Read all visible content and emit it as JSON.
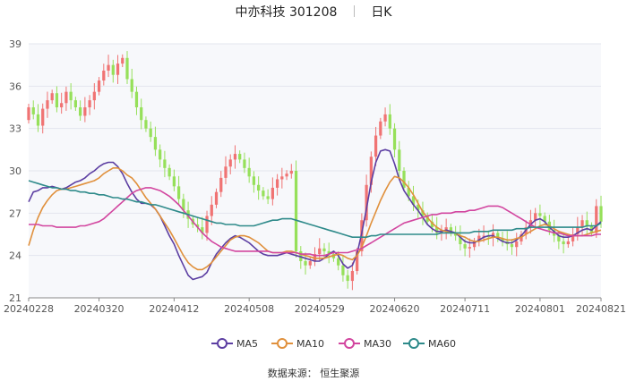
{
  "header": {
    "stock_name": "中亦科技",
    "stock_code": "301208",
    "period": "日K"
  },
  "source": {
    "label": "数据来源：",
    "provider": "恒生聚源"
  },
  "colors": {
    "up": "#f07373",
    "down": "#96e05a",
    "grid": "#e3e6ee",
    "plot_bg": "#f7f8fb",
    "ma5": "#5c3ea2",
    "ma10": "#e0903c",
    "ma30": "#d2459f",
    "ma60": "#2e8a8a"
  },
  "chart_data": {
    "type": "candlestick",
    "title": "中亦科技 301208  日K",
    "ylim": [
      21,
      39
    ],
    "yticks": [
      21,
      24,
      27,
      30,
      33,
      36,
      39
    ],
    "xticks": [
      "20240228",
      "20240320",
      "20240412",
      "20240508",
      "20240529",
      "20240620",
      "20240711",
      "20240801",
      "20240821"
    ],
    "xtick_index": [
      0,
      15,
      31,
      47,
      62,
      78,
      93,
      109,
      122
    ],
    "grid": true,
    "legend": "bottom-center",
    "series_names": [
      "MA5",
      "MA10",
      "MA30",
      "MA60"
    ],
    "closes": [
      34.5,
      34.0,
      33.2,
      34.4,
      35.0,
      35.5,
      34.5,
      34.8,
      35.6,
      35.0,
      34.5,
      33.9,
      34.5,
      35.0,
      35.6,
      36.4,
      37.1,
      37.5,
      36.8,
      37.6,
      38.0,
      36.5,
      35.6,
      34.5,
      33.6,
      33.0,
      32.4,
      31.5,
      30.8,
      30.2,
      29.6,
      28.9,
      28.0,
      27.2,
      26.6,
      26.2,
      26.0,
      25.6,
      26.8,
      27.6,
      28.5,
      29.5,
      30.3,
      30.8,
      31.2,
      30.8,
      30.2,
      29.6,
      29.0,
      28.6,
      28.2,
      28.0,
      28.8,
      29.4,
      29.6,
      29.8,
      30.0,
      24.3,
      23.6,
      23.3,
      23.6,
      24.1,
      24.5,
      24.3,
      24.1,
      23.8,
      23.3,
      22.6,
      22.2,
      22.9,
      24.3,
      26.5,
      29.0,
      31.0,
      32.5,
      33.5,
      34.0,
      33.0,
      31.5,
      30.0,
      28.8,
      28.2,
      27.6,
      27.2,
      26.8,
      26.4,
      26.0,
      25.6,
      25.8,
      26.0,
      25.6,
      25.4,
      24.8,
      24.5,
      24.6,
      25.0,
      25.4,
      25.4,
      25.3,
      25.6,
      25.2,
      25.0,
      24.8,
      24.6,
      25.0,
      25.5,
      26.0,
      26.5,
      27.0,
      26.8,
      26.4,
      25.8,
      25.4,
      25.0,
      24.8,
      25.0,
      25.5,
      26.0,
      26.5,
      26.1,
      25.6,
      27.5,
      26.4
    ],
    "ma5": [
      27.8,
      28.5,
      28.6,
      28.8,
      28.8,
      28.9,
      28.8,
      28.7,
      28.8,
      29.0,
      29.2,
      29.3,
      29.5,
      29.8,
      30.0,
      30.3,
      30.5,
      30.6,
      30.6,
      30.3,
      29.8,
      29.1,
      28.5,
      28.0,
      27.7,
      27.7,
      27.6,
      27.3,
      26.8,
      26.1,
      25.4,
      24.8,
      24.0,
      23.3,
      22.6,
      22.3,
      22.4,
      22.5,
      22.8,
      23.5,
      24.1,
      24.5,
      24.9,
      25.2,
      25.4,
      25.3,
      25.1,
      24.9,
      24.6,
      24.3,
      24.1,
      24.0,
      24.0,
      24.0,
      24.1,
      24.2,
      24.1,
      24.0,
      23.9,
      23.8,
      23.7,
      23.6,
      23.6,
      23.8,
      24.1,
      24.3,
      24.0,
      23.4,
      23.1,
      23.3,
      24.1,
      25.6,
      27.3,
      29.2,
      30.6,
      31.4,
      31.5,
      31.4,
      30.5,
      29.4,
      28.6,
      28.1,
      27.6,
      27.2,
      26.7,
      26.2,
      25.9,
      25.7,
      25.7,
      25.8,
      25.7,
      25.6,
      25.3,
      25.0,
      24.9,
      24.9,
      25.1,
      25.3,
      25.4,
      25.4,
      25.2,
      25.0,
      24.9,
      24.9,
      25.1,
      25.4,
      25.8,
      26.2,
      26.5,
      26.6,
      26.4,
      26.0,
      25.7,
      25.4,
      25.3,
      25.3,
      25.4,
      25.6,
      25.8,
      25.9,
      25.8,
      26.1,
      26.4
    ],
    "ma10": [
      24.7,
      25.8,
      26.7,
      27.4,
      27.9,
      28.3,
      28.6,
      28.7,
      28.7,
      28.8,
      28.9,
      29.0,
      29.1,
      29.2,
      29.3,
      29.5,
      29.8,
      30.0,
      30.2,
      30.2,
      30.0,
      29.7,
      29.5,
      29.1,
      28.6,
      28.1,
      27.7,
      27.3,
      26.8,
      26.3,
      25.8,
      25.2,
      24.6,
      24.0,
      23.5,
      23.2,
      23.0,
      23.0,
      23.2,
      23.5,
      23.9,
      24.3,
      24.7,
      25.1,
      25.3,
      25.4,
      25.4,
      25.3,
      25.1,
      24.9,
      24.6,
      24.3,
      24.2,
      24.2,
      24.2,
      24.3,
      24.3,
      24.2,
      24.1,
      24.0,
      23.9,
      23.8,
      23.8,
      23.8,
      23.9,
      24.0,
      24.1,
      24.0,
      23.8,
      23.7,
      24.0,
      24.6,
      25.4,
      26.3,
      27.1,
      27.9,
      28.6,
      29.2,
      29.6,
      29.5,
      29.2,
      28.8,
      28.3,
      27.7,
      27.1,
      26.7,
      26.3,
      26.0,
      25.8,
      25.7,
      25.6,
      25.6,
      25.4,
      25.3,
      25.1,
      25.0,
      25.0,
      25.1,
      25.2,
      25.3,
      25.3,
      25.2,
      25.1,
      25.1,
      25.2,
      25.3,
      25.5,
      25.7,
      25.9,
      26.1,
      26.2,
      26.1,
      25.9,
      25.7,
      25.6,
      25.5,
      25.4,
      25.4,
      25.4,
      25.5,
      25.6,
      25.7,
      25.8
    ],
    "ma30": [
      26.2,
      26.2,
      26.2,
      26.1,
      26.1,
      26.1,
      26.0,
      26.0,
      26.0,
      26.0,
      26.0,
      26.1,
      26.1,
      26.2,
      26.3,
      26.4,
      26.6,
      26.9,
      27.2,
      27.5,
      27.8,
      28.1,
      28.4,
      28.6,
      28.7,
      28.8,
      28.8,
      28.7,
      28.6,
      28.4,
      28.2,
      27.9,
      27.6,
      27.2,
      26.8,
      26.4,
      26.0,
      25.6,
      25.3,
      25.0,
      24.8,
      24.6,
      24.5,
      24.4,
      24.3,
      24.3,
      24.3,
      24.3,
      24.3,
      24.3,
      24.3,
      24.3,
      24.2,
      24.2,
      24.2,
      24.2,
      24.2,
      24.2,
      24.1,
      24.1,
      24.1,
      24.0,
      24.0,
      24.0,
      24.1,
      24.2,
      24.2,
      24.2,
      24.2,
      24.3,
      24.4,
      24.5,
      24.7,
      24.9,
      25.1,
      25.3,
      25.5,
      25.7,
      25.9,
      26.1,
      26.3,
      26.4,
      26.5,
      26.6,
      26.7,
      26.8,
      26.9,
      26.9,
      27.0,
      27.0,
      27.0,
      27.1,
      27.1,
      27.1,
      27.2,
      27.2,
      27.3,
      27.4,
      27.5,
      27.5,
      27.5,
      27.4,
      27.2,
      27.0,
      26.8,
      26.6,
      26.4,
      26.2,
      26.0,
      25.9,
      25.8,
      25.7,
      25.6,
      25.6,
      25.5,
      25.4,
      25.4,
      25.4,
      25.4,
      25.4,
      25.4,
      25.5,
      25.5
    ],
    "ma60": [
      29.3,
      29.2,
      29.1,
      29.0,
      28.9,
      28.8,
      28.8,
      28.7,
      28.7,
      28.6,
      28.6,
      28.5,
      28.5,
      28.4,
      28.4,
      28.3,
      28.3,
      28.2,
      28.1,
      28.1,
      28.0,
      28.0,
      27.9,
      27.8,
      27.8,
      27.7,
      27.6,
      27.6,
      27.5,
      27.4,
      27.3,
      27.2,
      27.1,
      27.0,
      26.9,
      26.8,
      26.7,
      26.6,
      26.5,
      26.4,
      26.3,
      26.3,
      26.2,
      26.2,
      26.2,
      26.1,
      26.1,
      26.1,
      26.1,
      26.2,
      26.3,
      26.4,
      26.5,
      26.5,
      26.6,
      26.6,
      26.6,
      26.5,
      26.4,
      26.3,
      26.2,
      26.1,
      26.0,
      25.9,
      25.8,
      25.7,
      25.6,
      25.5,
      25.4,
      25.3,
      25.3,
      25.3,
      25.3,
      25.4,
      25.4,
      25.5,
      25.5,
      25.5,
      25.5,
      25.5,
      25.5,
      25.5,
      25.5,
      25.5,
      25.5,
      25.5,
      25.5,
      25.5,
      25.6,
      25.6,
      25.6,
      25.6,
      25.6,
      25.6,
      25.6,
      25.7,
      25.7,
      25.7,
      25.7,
      25.8,
      25.8,
      25.8,
      25.8,
      25.8,
      25.9,
      25.9,
      25.9,
      26.0,
      26.0,
      26.0,
      26.0,
      26.0,
      26.0,
      26.0,
      26.0,
      26.0,
      26.0,
      26.0,
      26.0,
      26.1,
      26.1,
      26.1,
      26.3
    ]
  }
}
